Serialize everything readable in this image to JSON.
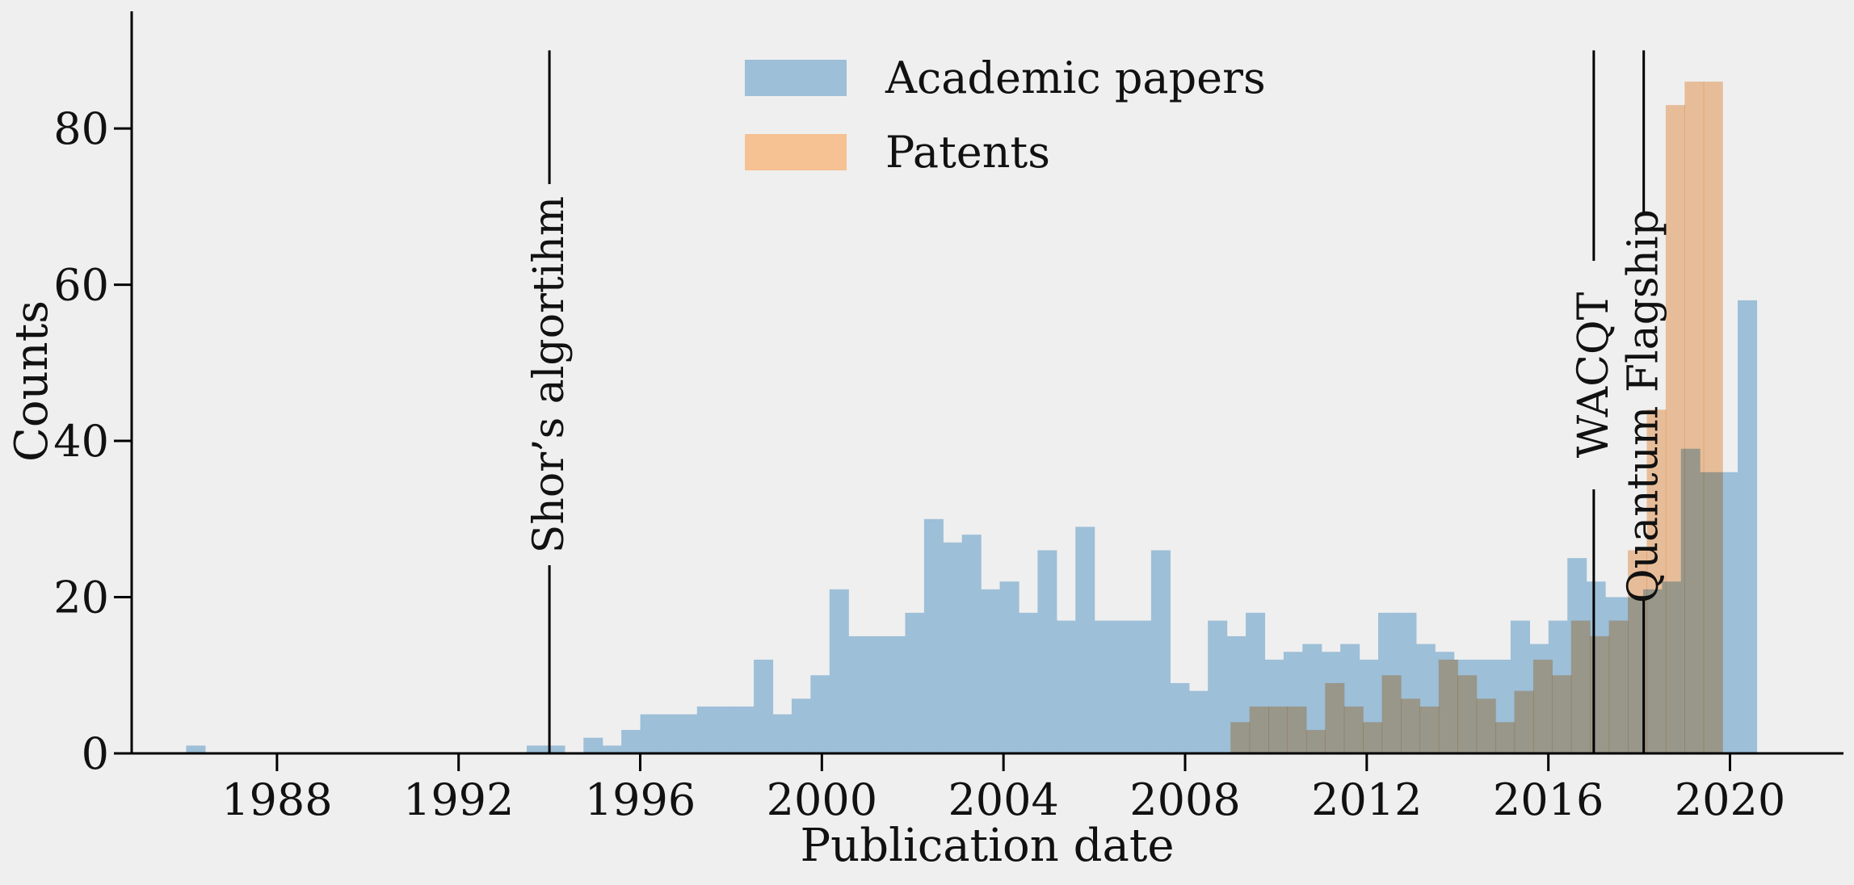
{
  "chart_data": {
    "type": "bar",
    "xlabel": "Publication date",
    "ylabel": "Counts",
    "xlim": [
      1984.8,
      2022.5
    ],
    "ylim": [
      0,
      95
    ],
    "bin_width": 0.4167,
    "x_ticks": [
      1988,
      1992,
      1996,
      2000,
      2004,
      2008,
      2012,
      2016,
      2020
    ],
    "y_ticks": [
      0,
      20,
      40,
      60,
      80
    ],
    "grid": false,
    "legend_position": "top-center",
    "series": [
      {
        "name": "Academic papers",
        "color": "#9dbfd8",
        "start": 1986.0,
        "values": [
          1,
          0,
          0,
          0,
          0,
          0,
          0,
          0,
          0,
          0,
          0,
          0,
          0,
          0,
          0,
          0,
          0,
          0,
          1,
          1,
          0,
          2,
          1,
          3,
          5,
          5,
          5,
          6,
          6,
          6,
          12,
          5,
          7,
          10,
          21,
          15,
          15,
          15,
          18,
          30,
          27,
          28,
          21,
          22,
          18,
          26,
          17,
          29,
          17,
          17,
          17,
          26,
          9,
          8,
          17,
          15,
          18,
          12,
          13,
          14,
          13,
          14,
          12,
          18,
          18,
          14,
          13,
          12,
          12,
          12,
          17,
          14,
          17,
          25,
          22,
          20,
          20,
          21,
          22,
          39,
          36,
          36,
          58
        ]
      },
      {
        "name": "Patents",
        "color": "#f6c193",
        "start": 2009.0,
        "values": [
          4,
          6,
          6,
          6,
          3,
          9,
          6,
          4,
          10,
          7,
          6,
          12,
          10,
          7,
          4,
          8,
          12,
          10,
          17,
          15,
          17,
          26,
          44,
          83,
          86,
          86
        ]
      }
    ],
    "events": [
      {
        "label": "Shor’s algortihm",
        "x": 1994.0
      },
      {
        "label": "WACQT",
        "x": 2017.0
      },
      {
        "label": "Quantum Flagship",
        "x": 2018.1
      }
    ]
  }
}
